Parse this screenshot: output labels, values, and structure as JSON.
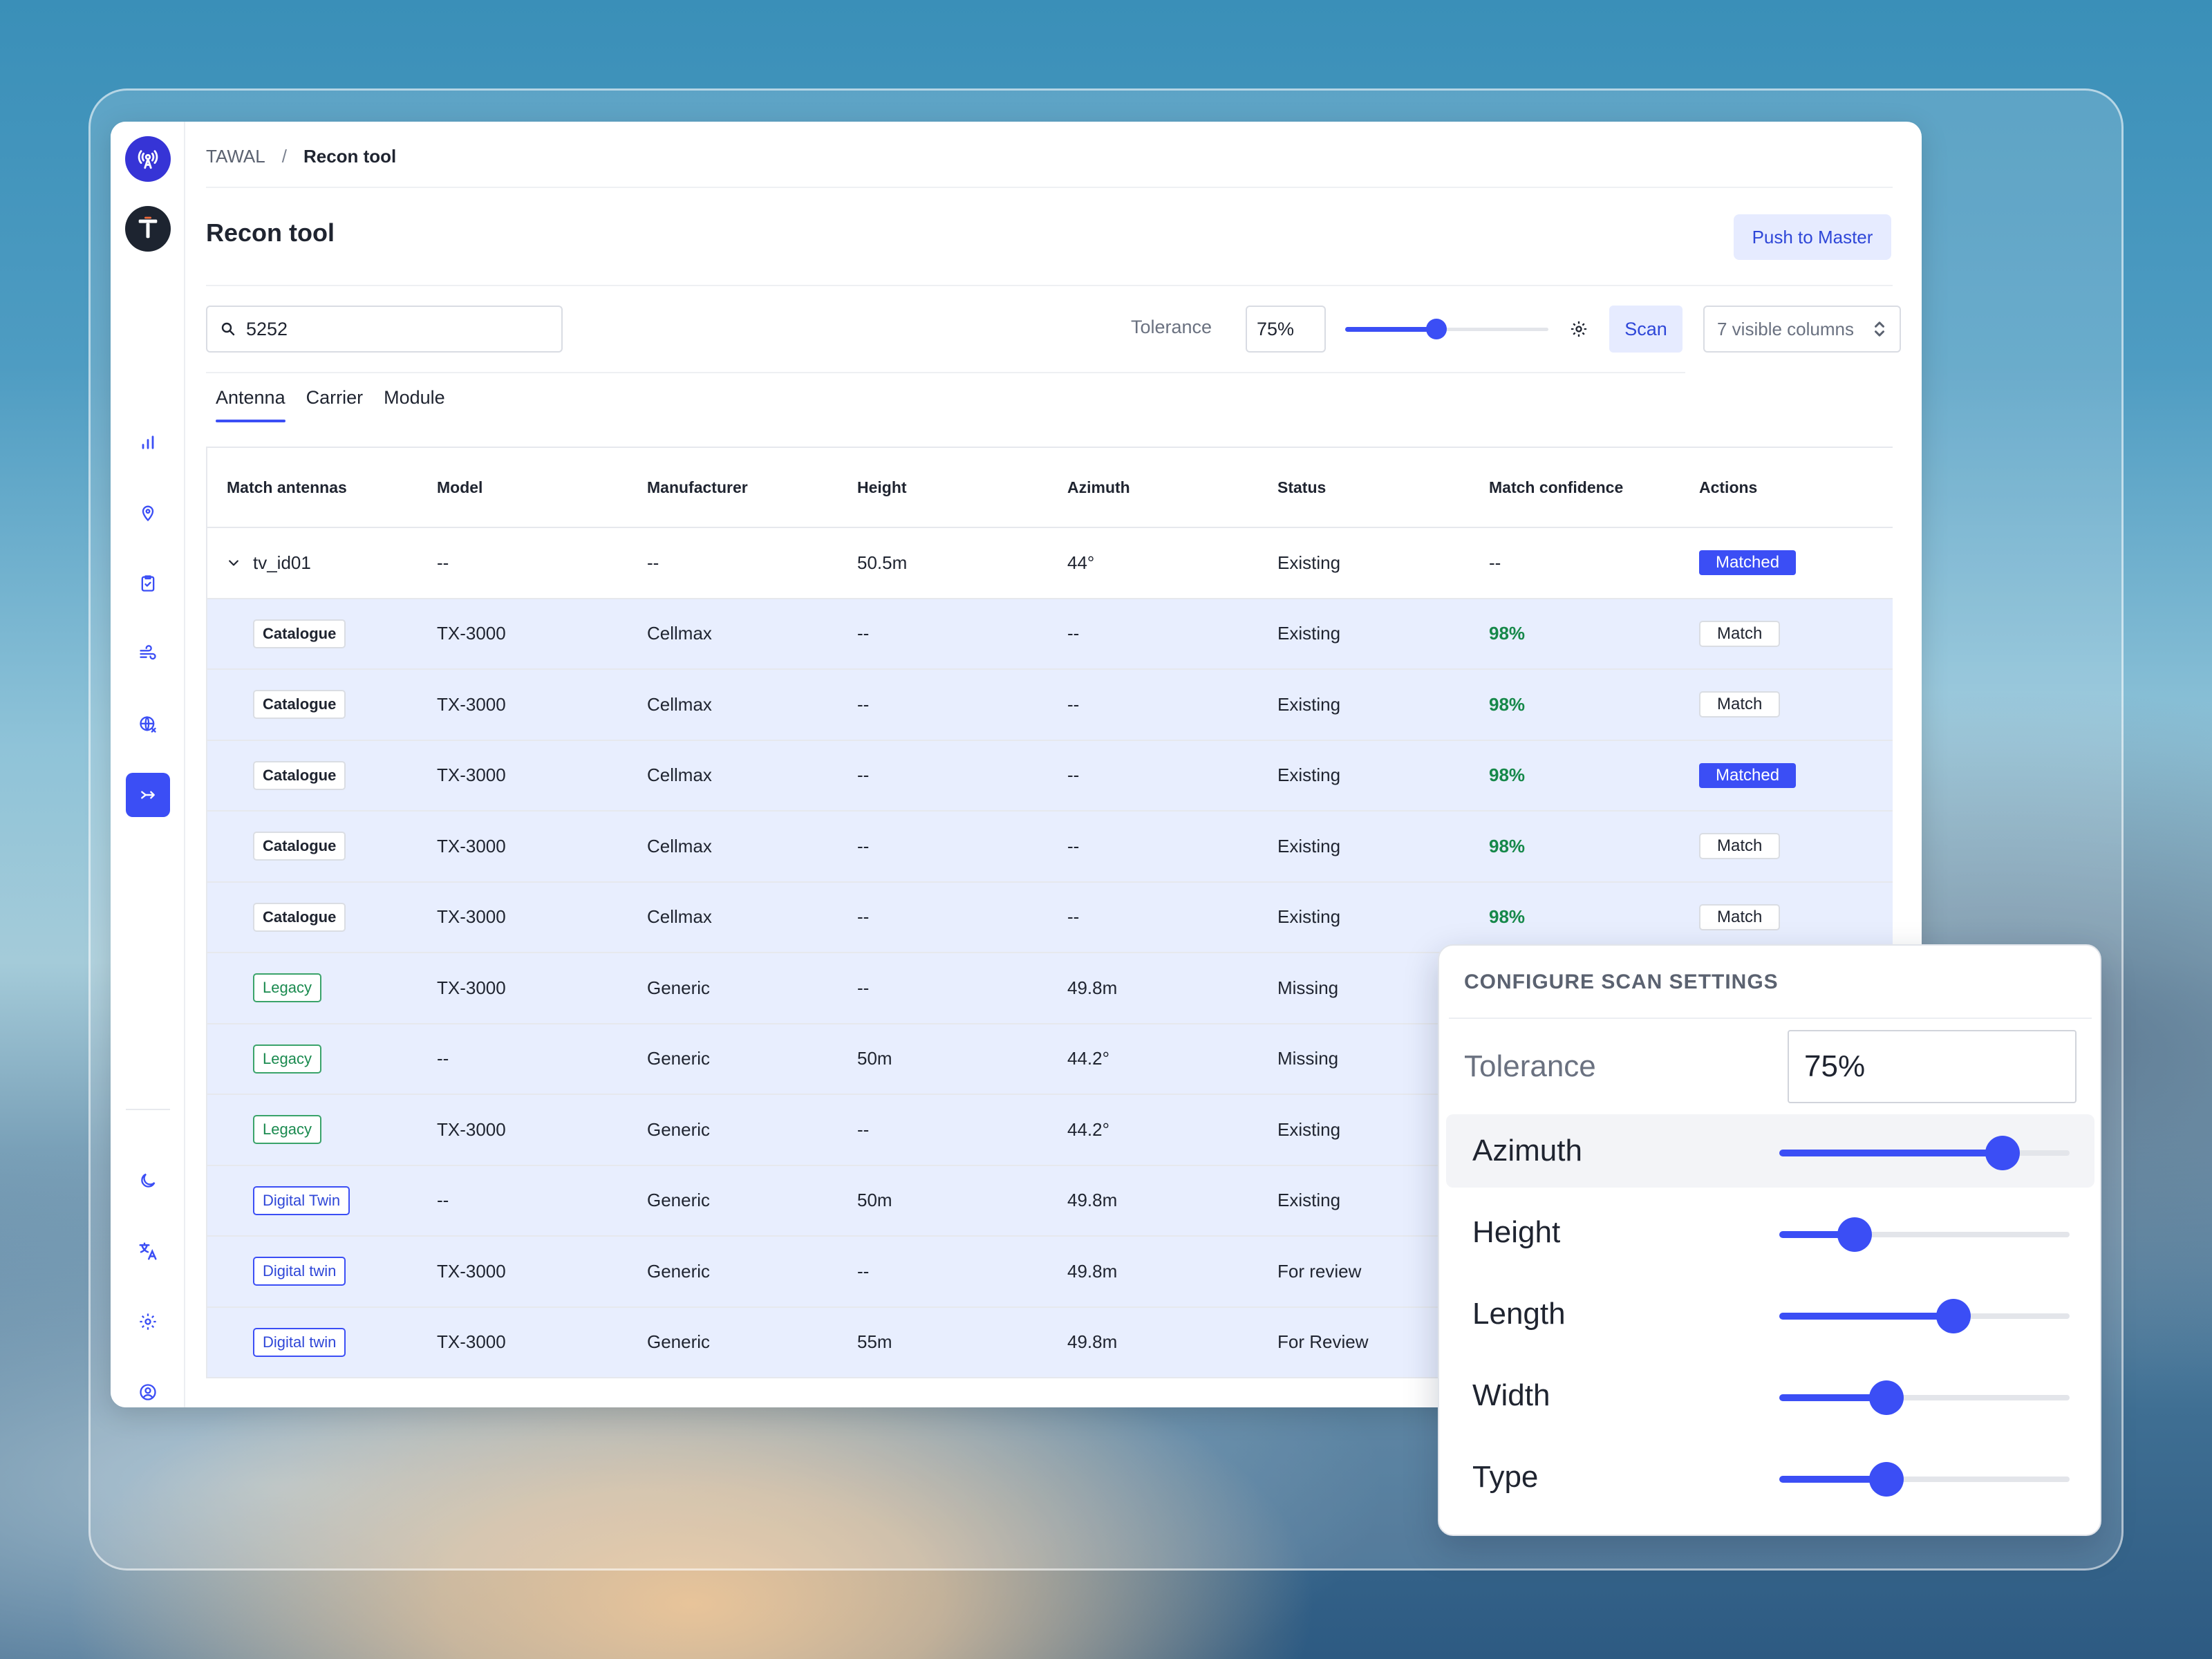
{
  "breadcrumb": {
    "root": "TAWAL",
    "separator": "/",
    "current": "Recon tool"
  },
  "page": {
    "title": "Recon tool",
    "push_label": "Push to Master"
  },
  "toolbar": {
    "search_value": "5252",
    "tolerance_label": "Tolerance",
    "tolerance_value": "75%",
    "tolerance_slider": 0.45,
    "scan_label": "Scan",
    "columns_label": "7 visible columns"
  },
  "tabs": [
    {
      "label": "Antenna",
      "active": true
    },
    {
      "label": "Carrier",
      "active": false
    },
    {
      "label": "Module",
      "active": false
    }
  ],
  "table": {
    "columns": [
      "Match antennas",
      "Model",
      "Manufacturer",
      "Height",
      "Azimuth",
      "Status",
      "Match confidence",
      "Actions"
    ],
    "parent": {
      "name": "tv_id01",
      "model": "--",
      "manufacturer": "--",
      "height": "50.5m",
      "azimuth": "44°",
      "status": "Existing",
      "confidence": "--",
      "action": "Matched"
    },
    "rows": [
      {
        "tag": "Catalogue",
        "tag_type": "catalogue",
        "model": "TX-3000",
        "manufacturer": "Cellmax",
        "height": "--",
        "azimuth": "--",
        "status": "Existing",
        "confidence": "98%",
        "action": "Match"
      },
      {
        "tag": "Catalogue",
        "tag_type": "catalogue",
        "model": "TX-3000",
        "manufacturer": "Cellmax",
        "height": "--",
        "azimuth": "--",
        "status": "Existing",
        "confidence": "98%",
        "action": "Match"
      },
      {
        "tag": "Catalogue",
        "tag_type": "catalogue",
        "model": "TX-3000",
        "manufacturer": "Cellmax",
        "height": "--",
        "azimuth": "--",
        "status": "Existing",
        "confidence": "98%",
        "action": "Matched"
      },
      {
        "tag": "Catalogue",
        "tag_type": "catalogue",
        "model": "TX-3000",
        "manufacturer": "Cellmax",
        "height": "--",
        "azimuth": "--",
        "status": "Existing",
        "confidence": "98%",
        "action": "Match"
      },
      {
        "tag": "Catalogue",
        "tag_type": "catalogue",
        "model": "TX-3000",
        "manufacturer": "Cellmax",
        "height": "--",
        "azimuth": "--",
        "status": "Existing",
        "confidence": "98%",
        "action": "Match"
      },
      {
        "tag": "Legacy",
        "tag_type": "legacy",
        "model": "TX-3000",
        "manufacturer": "Generic",
        "height": "--",
        "azimuth": "49.8m",
        "status": "Missing",
        "confidence": "",
        "action": ""
      },
      {
        "tag": "Legacy",
        "tag_type": "legacy",
        "model": "--",
        "manufacturer": "Generic",
        "height": "50m",
        "azimuth": "44.2°",
        "status": "Missing",
        "confidence": "",
        "action": ""
      },
      {
        "tag": "Legacy",
        "tag_type": "legacy",
        "model": "TX-3000",
        "manufacturer": "Generic",
        "height": "--",
        "azimuth": "44.2°",
        "status": "Existing",
        "confidence": "",
        "action": ""
      },
      {
        "tag": "Digital Twin",
        "tag_type": "digital",
        "model": "--",
        "manufacturer": "Generic",
        "height": "50m",
        "azimuth": "49.8m",
        "status": "Existing",
        "confidence": "",
        "action": ""
      },
      {
        "tag": "Digital twin",
        "tag_type": "digital",
        "model": "TX-3000",
        "manufacturer": "Generic",
        "height": "--",
        "azimuth": "49.8m",
        "status": "For review",
        "confidence": "",
        "action": ""
      },
      {
        "tag": "Digital twin",
        "tag_type": "digital",
        "model": "TX-3000",
        "manufacturer": "Generic",
        "height": "55m",
        "azimuth": "49.8m",
        "status": "For Review",
        "confidence": "",
        "action": ""
      }
    ]
  },
  "scan_settings": {
    "title": "CONFIGURE SCAN SETTINGS",
    "tolerance_label": "Tolerance",
    "tolerance_value": "75%",
    "sliders": [
      {
        "label": "Azimuth",
        "value": 0.77,
        "highlighted": true
      },
      {
        "label": "Height",
        "value": 0.26,
        "highlighted": false
      },
      {
        "label": "Length",
        "value": 0.6,
        "highlighted": false
      },
      {
        "label": "Width",
        "value": 0.37,
        "highlighted": false
      },
      {
        "label": "Type",
        "value": 0.37,
        "highlighted": false
      }
    ]
  },
  "colors": {
    "accent": "#3b4ef5",
    "confidence": "#16884a",
    "legacy": "#1a8a4f",
    "row_highlight": "#e8eefe"
  }
}
